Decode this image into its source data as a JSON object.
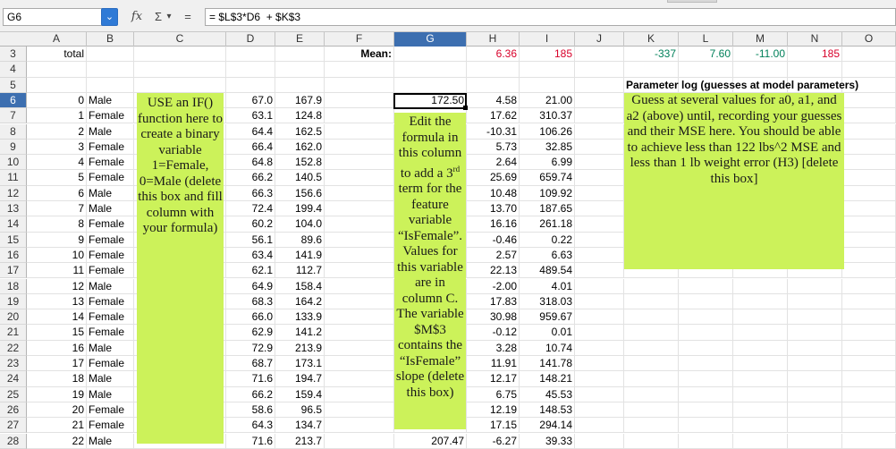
{
  "formula_bar": {
    "name_box": "G6",
    "name_dropdown_icon": "chevron-down-icon",
    "function_wizard": "fx",
    "sum_icon": "Σ",
    "sum_dropdown": "▾",
    "equals": "=",
    "formula": "= $L$3*D6  + $K$3"
  },
  "columns": [
    "A",
    "B",
    "C",
    "D",
    "E",
    "F",
    "G",
    "H",
    "I",
    "J",
    "K",
    "L",
    "M",
    "N",
    "O"
  ],
  "selected_column": "G",
  "selected_row": "6",
  "rows": [
    {
      "num": "3",
      "A": "total",
      "B": "",
      "D": "",
      "E": "",
      "F": "Mean:",
      "G": "",
      "H": "6.36",
      "I": "185",
      "K": "-337",
      "L": "7.60",
      "M": "-11.00",
      "N": "185"
    },
    {
      "num": "4"
    },
    {
      "num": "5"
    },
    {
      "num": "6",
      "A": "0",
      "B": "Male",
      "D": "67.0",
      "E": "167.9",
      "G": "172.50",
      "H": "4.58",
      "I": "21.00"
    },
    {
      "num": "7",
      "A": "1",
      "B": "Female",
      "D": "63.1",
      "E": "124.8",
      "G": "",
      "H": "17.62",
      "I": "310.37"
    },
    {
      "num": "8",
      "A": "2",
      "B": "Male",
      "D": "64.4",
      "E": "162.5",
      "H": "-10.31",
      "I": "106.26"
    },
    {
      "num": "9",
      "A": "3",
      "B": "Female",
      "D": "66.4",
      "E": "162.0",
      "H": "5.73",
      "I": "32.85"
    },
    {
      "num": "10",
      "A": "4",
      "B": "Female",
      "D": "64.8",
      "E": "152.8",
      "H": "2.64",
      "I": "6.99"
    },
    {
      "num": "11",
      "A": "5",
      "B": "Female",
      "D": "66.2",
      "E": "140.5",
      "H": "25.69",
      "I": "659.74"
    },
    {
      "num": "12",
      "A": "6",
      "B": "Male",
      "D": "66.3",
      "E": "156.6",
      "H": "10.48",
      "I": "109.92"
    },
    {
      "num": "13",
      "A": "7",
      "B": "Male",
      "D": "72.4",
      "E": "199.4",
      "H": "13.70",
      "I": "187.65"
    },
    {
      "num": "14",
      "A": "8",
      "B": "Female",
      "D": "60.2",
      "E": "104.0",
      "H": "16.16",
      "I": "261.18"
    },
    {
      "num": "15",
      "A": "9",
      "B": "Female",
      "D": "56.1",
      "E": "89.6",
      "H": "-0.46",
      "I": "0.22"
    },
    {
      "num": "16",
      "A": "10",
      "B": "Female",
      "D": "63.4",
      "E": "141.9",
      "H": "2.57",
      "I": "6.63"
    },
    {
      "num": "17",
      "A": "11",
      "B": "Female",
      "D": "62.1",
      "E": "112.7",
      "H": "22.13",
      "I": "489.54"
    },
    {
      "num": "18",
      "A": "12",
      "B": "Male",
      "D": "64.9",
      "E": "158.4",
      "H": "-2.00",
      "I": "4.01"
    },
    {
      "num": "19",
      "A": "13",
      "B": "Female",
      "D": "68.3",
      "E": "164.2",
      "H": "17.83",
      "I": "318.03"
    },
    {
      "num": "20",
      "A": "14",
      "B": "Female",
      "D": "66.0",
      "E": "133.9",
      "H": "30.98",
      "I": "959.67"
    },
    {
      "num": "21",
      "A": "15",
      "B": "Female",
      "D": "62.9",
      "E": "141.2",
      "H": "-0.12",
      "I": "0.01"
    },
    {
      "num": "22",
      "A": "16",
      "B": "Male",
      "D": "72.9",
      "E": "213.9",
      "H": "3.28",
      "I": "10.74"
    },
    {
      "num": "23",
      "A": "17",
      "B": "Female",
      "D": "68.7",
      "E": "173.1",
      "H": "11.91",
      "I": "141.78"
    },
    {
      "num": "24",
      "A": "18",
      "B": "Male",
      "D": "71.6",
      "E": "194.7",
      "H": "12.17",
      "I": "148.21"
    },
    {
      "num": "25",
      "A": "19",
      "B": "Male",
      "D": "66.2",
      "E": "159.4",
      "H": "6.75",
      "I": "45.53"
    },
    {
      "num": "26",
      "A": "20",
      "B": "Female",
      "D": "58.6",
      "E": "96.5",
      "H": "12.19",
      "I": "148.53"
    },
    {
      "num": "27",
      "A": "21",
      "B": "Female",
      "D": "64.3",
      "E": "134.7",
      "H": "17.15",
      "I": "294.14"
    },
    {
      "num": "28",
      "A": "22",
      "B": "Male",
      "D": "71.6",
      "E": "213.7",
      "G": "207.47",
      "H": "-6.27",
      "I": "39.33"
    }
  ],
  "param_log_title": "Parameter log (guesses at model parameters)",
  "box_c": "USE an IF() function here to create a binary variable 1=Female, 0=Male (delete this box and fill column with your formula)",
  "box_g": {
    "before_sup": "Edit the formula in this column to add a 3",
    "sup": "rd",
    "after_sup": " term for the feature variable “IsFemale”. Values for this variable are in column C. The variable $M$3 contains the “IsFemale” slope (delete this box)"
  },
  "box_k": "Guess at several values for a0, a1, and a2 (above) until, recording your guesses and their MSE here. You should be able to achieve less than 122 lbs^2 MSE and less than 1 lb weight error (H3) [delete this box]",
  "colors": {
    "selected_header": "#3d6fb0",
    "note_box": "#ccf25a",
    "red_value": "#d8002a",
    "green_value": "#00805a"
  }
}
